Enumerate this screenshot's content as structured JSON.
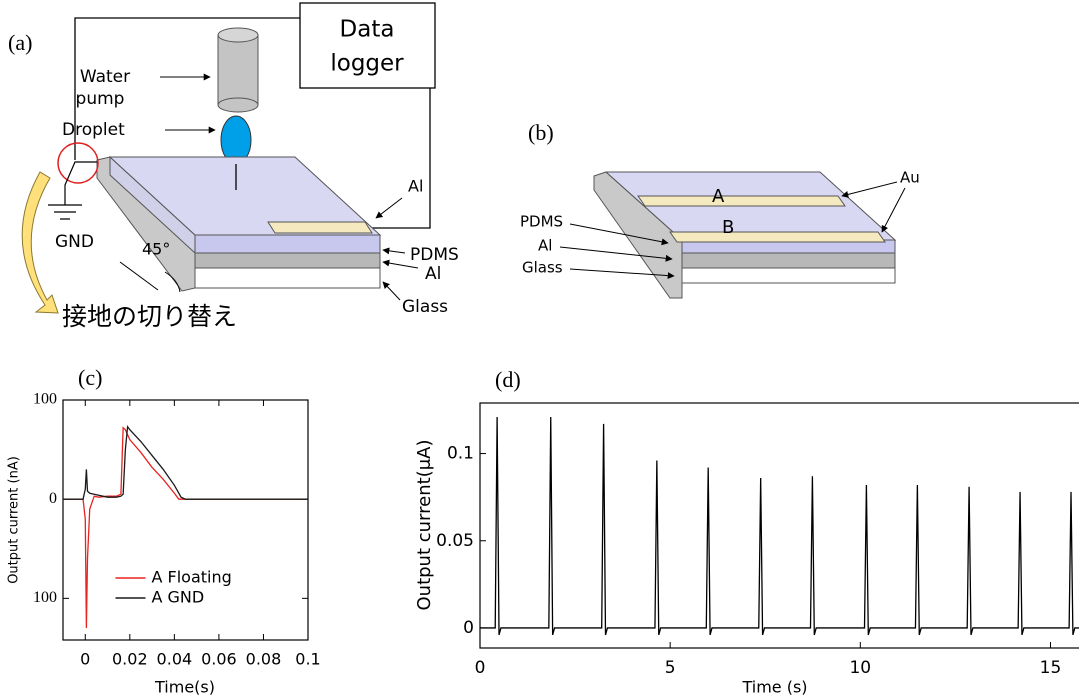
{
  "panels": {
    "a": {
      "label": "(a)",
      "data_logger": [
        "Data",
        "logger"
      ],
      "water_pump": [
        "Water",
        "pump"
      ],
      "droplet": "Droplet",
      "gnd": "GND",
      "angle": "45°",
      "al_electrode": "Al",
      "pdms": "PDMS",
      "al": "Al",
      "glass": "Glass",
      "switch_note": "接地の切り替え"
    },
    "b": {
      "label": "(b)",
      "au": "Au",
      "a": "A",
      "b": "B",
      "pdms": "PDMS",
      "al": "Al",
      "glass": "Glass"
    }
  },
  "chart_data": [
    {
      "type": "line",
      "label": "(c)",
      "x_label": "Time(s)",
      "y_label": "Output current (nA)",
      "xlim": [
        -0.01,
        0.1
      ],
      "ylim": [
        -142,
        100
      ],
      "xticks": [
        0,
        0.02,
        0.04,
        0.06,
        0.08,
        0.1
      ],
      "yticks": [
        {
          "value": -100,
          "label": "100"
        },
        0,
        100
      ],
      "legend": "lower center",
      "x": [
        -0.01,
        -0.005,
        -0.001,
        0,
        0.0005,
        0.001,
        0.002,
        0.004,
        0.006,
        0.01,
        0.014,
        0.016,
        0.017,
        0.018,
        0.019,
        0.02,
        0.025,
        0.03,
        0.035,
        0.04,
        0.042,
        0.043,
        0.045,
        0.05,
        0.06,
        0.07,
        0.08,
        0.09,
        0.1
      ],
      "series": [
        {
          "name": "A Floating",
          "color": "#e8231f",
          "values": [
            0,
            0,
            0,
            -20,
            -130,
            -60,
            -10,
            3,
            2,
            3,
            3,
            5,
            72,
            70,
            65,
            60,
            47,
            32,
            20,
            6,
            0,
            0,
            0,
            0,
            0,
            0,
            0,
            0,
            0
          ]
        },
        {
          "name": "A GND",
          "color": "#1a1a1a",
          "values": [
            0,
            0,
            0,
            10,
            30,
            8,
            6,
            5,
            4,
            2,
            2,
            3,
            5,
            50,
            73,
            70,
            58,
            44,
            30,
            14,
            6,
            2,
            0,
            0,
            0,
            0,
            0,
            0,
            0
          ]
        }
      ]
    },
    {
      "type": "line",
      "label": "(d)",
      "x_label": "Time (s)",
      "y_label": "Output current(μA)",
      "xlim": [
        0,
        15.75
      ],
      "ylim": [
        -0.0115,
        0.129
      ],
      "xticks": [
        0,
        5,
        10,
        15
      ],
      "yticks": [
        0,
        0.05,
        0.1
      ],
      "x": [
        0,
        0.4,
        0.45,
        0.5,
        0.55,
        1.81,
        1.86,
        1.91,
        1.96,
        3.2,
        3.25,
        3.3,
        3.35,
        4.6,
        4.65,
        4.7,
        4.75,
        5.95,
        6.0,
        6.05,
        6.1,
        7.33,
        7.38,
        7.43,
        7.48,
        8.69,
        8.74,
        8.79,
        8.84,
        10.11,
        10.16,
        10.21,
        10.26,
        11.45,
        11.5,
        11.55,
        11.6,
        12.81,
        12.86,
        12.91,
        12.96,
        14.15,
        14.2,
        14.25,
        14.3,
        15.49,
        15.54,
        15.59,
        15.64,
        15.75
      ],
      "series": [
        {
          "color": "#000000",
          "values": [
            0,
            0,
            0.121,
            -0.004,
            0,
            0,
            0.121,
            -0.004,
            0,
            0,
            0.117,
            -0.004,
            0,
            0,
            0.096,
            -0.004,
            0,
            0,
            0.092,
            -0.004,
            0,
            0,
            0.086,
            -0.004,
            0,
            0,
            0.087,
            -0.004,
            0,
            0,
            0.082,
            -0.004,
            0,
            0,
            0.082,
            -0.004,
            0,
            0,
            0.081,
            -0.004,
            0,
            0,
            0.078,
            -0.004,
            0,
            0,
            0.078,
            -0.004,
            0,
            0
          ]
        }
      ]
    }
  ]
}
